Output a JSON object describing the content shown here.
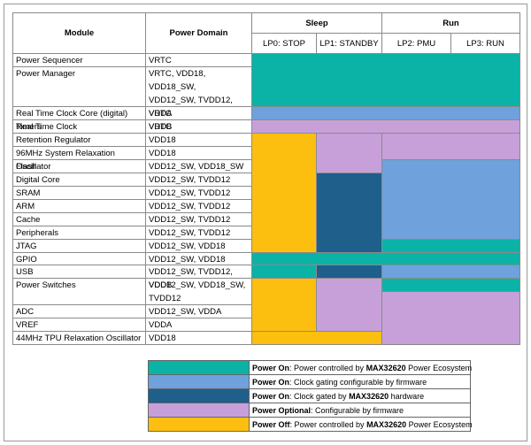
{
  "header": {
    "module": "Module",
    "power_domain": "Power Domain",
    "groups": [
      "Sleep",
      "Run"
    ],
    "modes": [
      "LP0: STOP",
      "LP1: STANDBY",
      "LP2: PMU",
      "LP3: RUN"
    ]
  },
  "table": {
    "rows": [
      {
        "module": "Power Sequencer",
        "domain": [
          "VRTC"
        ]
      },
      {
        "module": "Power Manager",
        "domain": [
          "VRTC, VDD18, VDD18_SW,",
          "VDD12_SW, TVDD12, VDDA",
          "VDDB"
        ]
      },
      {
        "module": "Real Time Clock Core (digital) Timers",
        "domain": [
          "VRTC"
        ]
      },
      {
        "module": "Real Time Clock",
        "domain": [
          "VRTC"
        ]
      },
      {
        "module": "Retention Regulator",
        "domain": [
          "VDD18"
        ]
      },
      {
        "module": "96MHz System Relaxation Oscillator",
        "domain": [
          "VDD18"
        ]
      },
      {
        "module": "Flash",
        "domain": [
          "VDD12_SW, VDD18_SW"
        ]
      },
      {
        "module": "Digital Core",
        "domain": [
          "VDD12_SW, TVDD12"
        ]
      },
      {
        "module": "SRAM",
        "domain": [
          "VDD12_SW, TVDD12"
        ]
      },
      {
        "module": "ARM",
        "domain": [
          "VDD12_SW, TVDD12"
        ]
      },
      {
        "module": "Cache",
        "domain": [
          "VDD12_SW, TVDD12"
        ]
      },
      {
        "module": "Peripherals",
        "domain": [
          "VDD12_SW, TVDD12"
        ]
      },
      {
        "module": "JTAG",
        "domain": [
          "VDD12_SW, VDD18"
        ]
      },
      {
        "module": "GPIO",
        "domain": [
          "VDD12_SW, VDD18"
        ]
      },
      {
        "module": "USB",
        "domain": [
          "VDD12_SW, TVDD12, VDDB"
        ]
      },
      {
        "module": "Power Switches",
        "domain": [
          "VDD12_SW, VDD18_SW,",
          "TVDD12"
        ]
      },
      {
        "module": "ADC",
        "domain": [
          "VDD12_SW, VDDA"
        ]
      },
      {
        "module": "VREF",
        "domain": [
          "VDDA"
        ]
      },
      {
        "module": "44MHz TPU Relaxation Oscillator",
        "domain": [
          "VDD18"
        ]
      }
    ]
  },
  "legend": [
    {
      "color": "#0bb3a6",
      "parts": [
        {
          "text": "Power On",
          "bold": true
        },
        {
          "text": ": Power controlled by ",
          "bold": false
        },
        {
          "text": "MAX32620",
          "bold": true
        },
        {
          "text": " Power Ecosystem",
          "bold": false
        }
      ]
    },
    {
      "color": "#6fa1dc",
      "parts": [
        {
          "text": "Power On",
          "bold": true
        },
        {
          "text": ": Clock gating configurable by firmware",
          "bold": false
        }
      ]
    },
    {
      "color": "#1e5f8c",
      "parts": [
        {
          "text": "Power On",
          "bold": true
        },
        {
          "text": ": Clock gated by ",
          "bold": false
        },
        {
          "text": "MAX32620",
          "bold": true
        },
        {
          "text": " hardware",
          "bold": false
        }
      ]
    },
    {
      "color": "#c7a0d9",
      "parts": [
        {
          "text": "Power Optional",
          "bold": true
        },
        {
          "text": ": Configurable by firmware",
          "bold": false
        }
      ]
    },
    {
      "color": "#fcbf10",
      "parts": [
        {
          "text": "Power Off",
          "bold": true
        },
        {
          "text": ": Power controlled by ",
          "bold": false
        },
        {
          "text": "MAX32620",
          "bold": true
        },
        {
          "text": " Power Ecosystem",
          "bold": false
        }
      ]
    }
  ]
}
